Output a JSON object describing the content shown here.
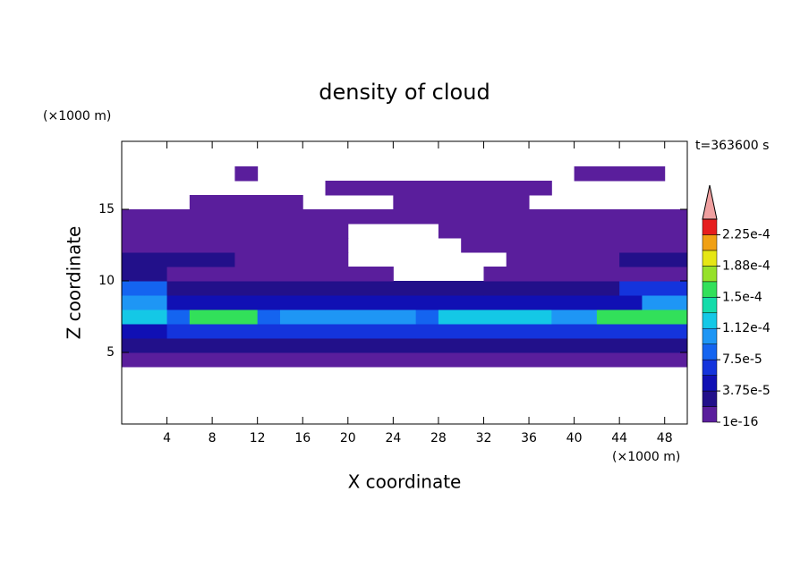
{
  "chart_data": {
    "type": "contour",
    "title": "density of cloud",
    "x_label": "X coordinate",
    "y_label": "Z coordinate",
    "x_unit": "(×1000 m)",
    "y_unit": "(×1000 m)",
    "time_label": "t=363600 s",
    "xlim": [
      0,
      50
    ],
    "xticks": [
      4,
      8,
      12,
      16,
      20,
      24,
      28,
      32,
      36,
      40,
      44,
      48
    ],
    "ylim": [
      0,
      19.75
    ],
    "yticks": [
      5,
      10,
      15
    ],
    "x": [
      1,
      3,
      5,
      7,
      9,
      11,
      13,
      15,
      17,
      19,
      21,
      23,
      25,
      27,
      29,
      31,
      33,
      35,
      37,
      39,
      41,
      43,
      45,
      47,
      49
    ],
    "y": [
      4.5,
      5.5,
      6.5,
      7.5,
      8.5,
      9.5,
      10.5,
      11.5,
      12.5,
      13.5,
      14.5,
      15.5,
      16.5,
      17.5
    ],
    "z": [
      [
        5e-06,
        5e-06,
        5e-06,
        5e-06,
        5e-06,
        5e-06,
        5e-06,
        5e-06,
        5e-06,
        5e-06,
        5e-06,
        5e-06,
        5e-06,
        5e-06,
        5e-06,
        5e-06,
        5e-06,
        5e-06,
        5e-06,
        5e-06,
        5e-06,
        5e-06,
        5e-06,
        5e-06,
        5e-06
      ],
      [
        3e-05,
        3e-05,
        3e-05,
        3e-05,
        3e-05,
        3e-05,
        3e-05,
        3e-05,
        3e-05,
        3e-05,
        3e-05,
        3e-05,
        3e-05,
        3e-05,
        3e-05,
        3e-05,
        3e-05,
        3e-05,
        3e-05,
        3e-05,
        3e-05,
        3e-05,
        3e-05,
        3e-05,
        3e-05
      ],
      [
        4e-05,
        5e-05,
        7e-05,
        7e-05,
        7e-05,
        7e-05,
        7e-05,
        7e-05,
        7e-05,
        7e-05,
        7e-05,
        7e-05,
        7e-05,
        7e-05,
        7e-05,
        7e-05,
        7e-05,
        7e-05,
        7e-05,
        7e-05,
        7e-05,
        7e-05,
        7e-05,
        7e-05,
        7e-05
      ],
      [
        0.00013,
        0.00013,
        9e-05,
        0.00015,
        0.00015,
        0.00015,
        9e-05,
        0.00011,
        0.00011,
        0.00011,
        0.00011,
        0.00011,
        0.00011,
        8e-05,
        0.00013,
        0.00013,
        0.00013,
        0.00013,
        0.00013,
        0.0001,
        0.0001,
        0.00016,
        0.00016,
        0.00016,
        0.00016
      ],
      [
        0.00011,
        0.00011,
        4e-05,
        4e-05,
        4e-05,
        4e-05,
        4e-05,
        4e-05,
        4e-05,
        4e-05,
        4e-05,
        4e-05,
        4e-05,
        4e-05,
        4e-05,
        4e-05,
        4e-05,
        4e-05,
        4e-05,
        4e-05,
        4e-05,
        4e-05,
        4e-05,
        0.0001,
        0.0001
      ],
      [
        8e-05,
        8e-05,
        2e-05,
        2e-05,
        2e-05,
        2e-05,
        2e-05,
        2e-05,
        2e-05,
        2e-05,
        2e-05,
        2e-05,
        2e-05,
        2e-05,
        2e-05,
        2e-05,
        2e-05,
        2e-05,
        2e-05,
        2e-05,
        2e-05,
        2e-05,
        6e-05,
        6e-05,
        6e-05
      ],
      [
        3e-05,
        3e-05,
        1e-05,
        1e-05,
        1e-05,
        1e-05,
        1e-05,
        1e-05,
        1e-05,
        1e-05,
        1e-05,
        1e-05,
        null,
        null,
        null,
        null,
        1e-05,
        1e-05,
        1e-05,
        1e-05,
        1e-05,
        1e-05,
        1e-05,
        1e-05,
        1e-05
      ],
      [
        2e-05,
        2e-05,
        2e-05,
        2e-05,
        2e-05,
        1e-05,
        1e-05,
        1e-05,
        1e-05,
        1e-05,
        null,
        null,
        null,
        null,
        null,
        null,
        null,
        1e-05,
        1e-05,
        1e-05,
        1e-05,
        1e-05,
        2e-05,
        2e-05,
        2e-05
      ],
      [
        1.5e-05,
        1.5e-05,
        1.5e-05,
        1.5e-05,
        1.5e-05,
        1.5e-05,
        1.5e-05,
        1.5e-05,
        1.5e-05,
        1.5e-05,
        null,
        null,
        null,
        null,
        null,
        1e-05,
        1e-05,
        1e-05,
        1e-05,
        1e-05,
        1e-05,
        1e-05,
        1e-05,
        1e-05,
        1e-05
      ],
      [
        1e-05,
        1e-05,
        1e-05,
        1e-05,
        1e-05,
        1e-05,
        1e-05,
        1e-05,
        1e-05,
        1e-05,
        null,
        null,
        null,
        null,
        8e-06,
        8e-06,
        8e-06,
        8e-06,
        8e-06,
        8e-06,
        8e-06,
        8e-06,
        8e-06,
        8e-06,
        8e-06
      ],
      [
        5e-06,
        5e-06,
        5e-06,
        5e-06,
        5e-06,
        5e-06,
        5e-06,
        5e-06,
        5e-06,
        5e-06,
        5e-06,
        5e-06,
        5e-06,
        5e-06,
        5e-06,
        5e-06,
        5e-06,
        5e-06,
        5e-06,
        5e-06,
        5e-06,
        5e-06,
        5e-06,
        5e-06,
        5e-06
      ],
      [
        null,
        null,
        null,
        5e-06,
        5e-06,
        5e-06,
        5e-06,
        5e-06,
        null,
        null,
        null,
        null,
        5e-06,
        5e-06,
        5e-06,
        5e-06,
        5e-06,
        5e-06,
        null,
        null,
        null,
        null,
        null,
        null,
        null
      ],
      [
        null,
        null,
        null,
        null,
        null,
        null,
        null,
        null,
        null,
        5e-06,
        5e-06,
        5e-06,
        5e-06,
        5e-06,
        5e-06,
        5e-06,
        5e-06,
        5e-06,
        5e-06,
        null,
        null,
        null,
        null,
        null,
        null
      ],
      [
        null,
        null,
        null,
        null,
        null,
        5e-06,
        null,
        null,
        null,
        null,
        null,
        null,
        null,
        null,
        null,
        null,
        null,
        null,
        null,
        null,
        5e-06,
        5e-06,
        5e-06,
        5e-06,
        null
      ]
    ],
    "levels": [
      1e-16,
      1.875e-05,
      3.75e-05,
      5.625e-05,
      7.5e-05,
      9.375e-05,
      0.0001125,
      0.00013125,
      0.00015,
      0.00016875,
      0.0001875,
      0.00020625,
      0.000225,
      0.00024375
    ],
    "colors": [
      "#5a1e9c",
      "#22108a",
      "#1010b4",
      "#1434dc",
      "#1464f0",
      "#1e96f5",
      "#14c8e6",
      "#14dcaa",
      "#32e05a",
      "#96e12a",
      "#e6e614",
      "#f0a014",
      "#e61e1e"
    ],
    "extend_color": "#f0a0a0",
    "cbar_ticks": [
      {
        "value": 1e-16,
        "label": "1e-16"
      },
      {
        "value": 3.75e-05,
        "label": "3.75e-5"
      },
      {
        "value": 7.5e-05,
        "label": "7.5e-5"
      },
      {
        "value": 0.0001125,
        "label": "1.12e-4"
      },
      {
        "value": 0.00015,
        "label": "1.5e-4"
      },
      {
        "value": 0.0001875,
        "label": "1.88e-4"
      },
      {
        "value": 0.000225,
        "label": "2.25e-4"
      }
    ]
  }
}
